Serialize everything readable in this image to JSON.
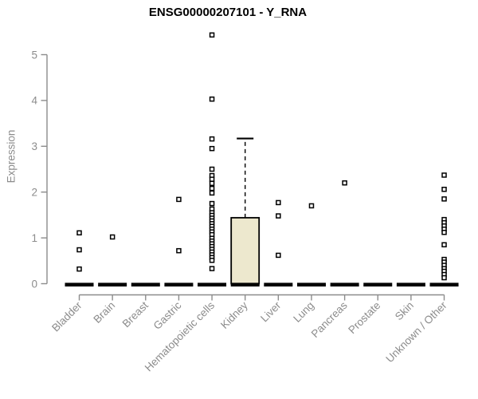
{
  "title": "ENSG00000207101 - Y_RNA",
  "chart_data": {
    "type": "boxplot",
    "title": "ENSG00000207101 - Y_RNA",
    "xlabel": "",
    "ylabel": "Expression",
    "ylim": [
      0,
      5.5
    ],
    "yticks": [
      0,
      1,
      2,
      3,
      4,
      5
    ],
    "grid": false,
    "legend": "none",
    "categories": [
      "Bladder",
      "Brain",
      "Breast",
      "Gastric",
      "Hematopoietic cells",
      "Kidney",
      "Liver",
      "Lung",
      "Pancreas",
      "Prostate",
      "Skin",
      "Unknown / Other"
    ],
    "series": [
      {
        "category": "Bladder",
        "median": 0,
        "q1": 0,
        "q3": 0,
        "whisker_low": 0,
        "whisker_high": 0,
        "outliers": [
          1.11,
          0.74,
          0.32
        ]
      },
      {
        "category": "Brain",
        "median": 0,
        "q1": 0,
        "q3": 0,
        "whisker_low": 0,
        "whisker_high": 0,
        "outliers": [
          1.02
        ]
      },
      {
        "category": "Breast",
        "median": 0,
        "q1": 0,
        "q3": 0,
        "whisker_low": 0,
        "whisker_high": 0,
        "outliers": []
      },
      {
        "category": "Gastric",
        "median": 0,
        "q1": 0,
        "q3": 0,
        "whisker_low": 0,
        "whisker_high": 0,
        "outliers": [
          1.84,
          0.72
        ]
      },
      {
        "category": "Hematopoietic cells",
        "median": 0,
        "q1": 0,
        "q3": 0,
        "whisker_low": 0,
        "whisker_high": 0,
        "outliers": [
          5.43,
          4.03,
          3.16,
          2.95,
          2.5,
          2.36,
          2.28,
          2.19,
          2.08,
          1.98,
          1.75,
          1.63,
          1.55,
          1.49,
          1.43,
          1.37,
          1.31,
          1.25,
          1.19,
          1.13,
          1.07,
          0.99,
          0.93,
          0.87,
          0.81,
          0.75,
          0.69,
          0.63,
          0.57,
          0.51,
          0.33
        ]
      },
      {
        "category": "Kidney",
        "median": 0,
        "q1": 0,
        "q3": 1.44,
        "whisker_low": 0,
        "whisker_high": 3.17,
        "outliers": []
      },
      {
        "category": "Liver",
        "median": 0,
        "q1": 0,
        "q3": 0,
        "whisker_low": 0,
        "whisker_high": 0,
        "outliers": [
          1.77,
          1.48,
          0.62
        ]
      },
      {
        "category": "Lung",
        "median": 0,
        "q1": 0,
        "q3": 0,
        "whisker_low": 0,
        "whisker_high": 0,
        "outliers": [
          1.7
        ]
      },
      {
        "category": "Pancreas",
        "median": 0,
        "q1": 0,
        "q3": 0,
        "whisker_low": 0,
        "whisker_high": 0,
        "outliers": [
          2.2
        ]
      },
      {
        "category": "Prostate",
        "median": 0,
        "q1": 0,
        "q3": 0,
        "whisker_low": 0,
        "whisker_high": 0,
        "outliers": []
      },
      {
        "category": "Skin",
        "median": 0,
        "q1": 0,
        "q3": 0,
        "whisker_low": 0,
        "whisker_high": 0,
        "outliers": []
      },
      {
        "category": "Unknown / Other",
        "median": 0,
        "q1": 0,
        "q3": 0,
        "whisker_low": 0,
        "whisker_high": 0,
        "outliers": [
          2.37,
          2.06,
          1.85,
          1.4,
          1.33,
          1.26,
          1.19,
          1.12,
          0.85,
          0.53,
          0.47,
          0.4,
          0.33,
          0.27,
          0.2,
          0.13
        ]
      }
    ],
    "colors": {
      "box_fill": "#EDE8CE",
      "box_border": "#000000",
      "median_bar": "#000000",
      "outlier_stroke": "#000000",
      "outlier_fill": "#ffffff",
      "axis": "#8c8c8c",
      "tick_label": "#8c8c8c",
      "title": "#000000",
      "background": "#ffffff"
    }
  }
}
